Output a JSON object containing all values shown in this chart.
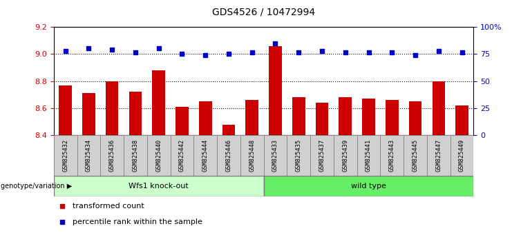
{
  "title": "GDS4526 / 10472994",
  "categories": [
    "GSM825432",
    "GSM825434",
    "GSM825436",
    "GSM825438",
    "GSM825440",
    "GSM825442",
    "GSM825444",
    "GSM825446",
    "GSM825448",
    "GSM825433",
    "GSM825435",
    "GSM825437",
    "GSM825439",
    "GSM825441",
    "GSM825443",
    "GSM825445",
    "GSM825447",
    "GSM825449"
  ],
  "bar_values": [
    8.77,
    8.71,
    8.8,
    8.72,
    8.88,
    8.61,
    8.65,
    8.48,
    8.66,
    9.06,
    8.68,
    8.64,
    8.68,
    8.67,
    8.66,
    8.65,
    8.8,
    8.62
  ],
  "dot_values": [
    9.02,
    9.04,
    9.03,
    9.01,
    9.04,
    9.0,
    8.99,
    9.0,
    9.01,
    9.08,
    9.01,
    9.02,
    9.01,
    9.01,
    9.01,
    8.99,
    9.02,
    9.01
  ],
  "ylim_left": [
    8.4,
    9.2
  ],
  "ylim_right": [
    0,
    100
  ],
  "bar_color": "#cc0000",
  "dot_color": "#0000cc",
  "group1_label": "Wfs1 knock-out",
  "group2_label": "wild type",
  "group1_color": "#ccffcc",
  "group2_color": "#66ee66",
  "group1_count": 9,
  "group2_count": 9,
  "genotype_label": "genotype/variation",
  "legend_bar": "transformed count",
  "legend_dot": "percentile rank within the sample",
  "yticks_left": [
    8.4,
    8.6,
    8.8,
    9.0,
    9.2
  ],
  "yticks_right": [
    0,
    25,
    50,
    75,
    100
  ],
  "ytick_right_labels": [
    "0",
    "25",
    "50",
    "75",
    "100%"
  ],
  "gridlines": [
    8.6,
    8.8,
    9.0
  ],
  "xlabel_gray": "#d0d0d0",
  "xlabel_border": "#888888"
}
